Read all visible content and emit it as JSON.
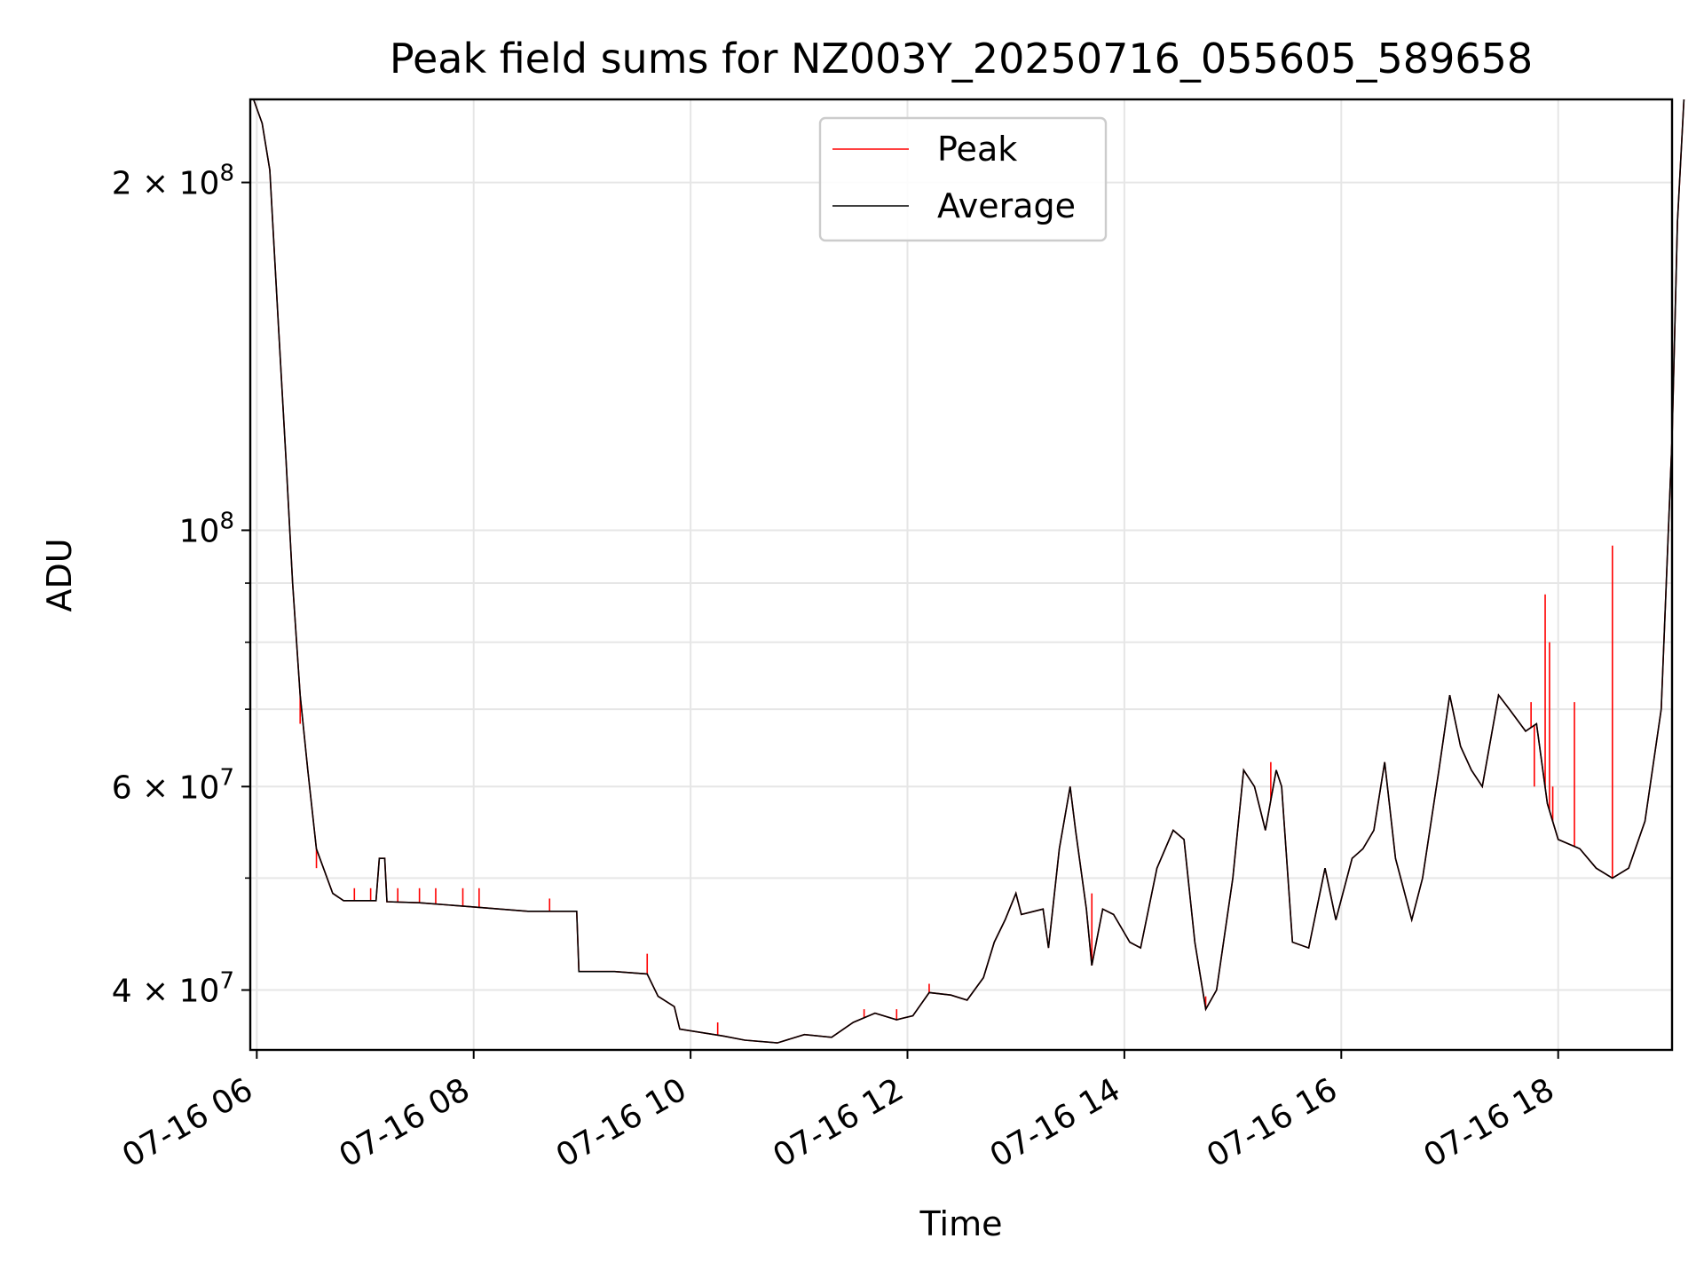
{
  "chart_data": {
    "type": "line",
    "title": "Peak field sums for NZ003Y_20250716_055605_589658",
    "xlabel": "Time",
    "ylabel": "ADU",
    "x_tick_labels": [
      "07-16 06",
      "07-16 08",
      "07-16 10",
      "07-16 12",
      "07-16 14",
      "07-16 16",
      "07-16 18"
    ],
    "x_ticks_hours": [
      6,
      8,
      10,
      12,
      14,
      16,
      18
    ],
    "y_scale": "log",
    "y_ticks": [
      {
        "value": 40000000,
        "mant": "4",
        "exp": "7"
      },
      {
        "value": 60000000,
        "mant": "6",
        "exp": "7"
      },
      {
        "value": 100000000,
        "mant": "",
        "exp": "8"
      },
      {
        "value": 200000000,
        "mant": "2",
        "exp": "8"
      }
    ],
    "y_minor_ticks": [
      50000000,
      70000000,
      80000000,
      90000000
    ],
    "xlim_hours": [
      5.94,
      19.05
    ],
    "ylim": [
      35500000,
      236000000
    ],
    "grid": true,
    "legend": "upper center",
    "colors": {
      "peak": "#ff0000",
      "average": "#000000",
      "grid": "#e6e6e6"
    },
    "series": [
      {
        "name": "Peak",
        "color": "#ff0000",
        "spikes": [
          [
            6.4,
            68000000
          ],
          [
            6.55,
            51000000
          ],
          [
            6.9,
            49000000
          ],
          [
            7.05,
            49000000
          ],
          [
            7.3,
            49000000
          ],
          [
            7.5,
            49000000
          ],
          [
            7.65,
            49000000
          ],
          [
            7.9,
            49000000
          ],
          [
            8.05,
            49000000
          ],
          [
            8.7,
            48000000
          ],
          [
            9.6,
            43000000
          ],
          [
            10.25,
            37500000
          ],
          [
            11.6,
            38500000
          ],
          [
            11.9,
            38500000
          ],
          [
            12.2,
            40500000
          ],
          [
            13.7,
            48500000
          ],
          [
            14.75,
            39500000
          ],
          [
            15.35,
            63000000
          ],
          [
            17.75,
            71000000
          ],
          [
            17.78,
            60000000
          ],
          [
            17.88,
            88000000
          ],
          [
            17.92,
            80000000
          ],
          [
            17.95,
            60000000
          ],
          [
            18.15,
            71000000
          ],
          [
            18.5,
            97000000
          ]
        ]
      },
      {
        "name": "Average",
        "color": "#000000",
        "points": [
          [
            5.97,
            236000000
          ],
          [
            6.05,
            225000000
          ],
          [
            6.12,
            205000000
          ],
          [
            6.2,
            150000000
          ],
          [
            6.27,
            115000000
          ],
          [
            6.33,
            90000000
          ],
          [
            6.4,
            72000000
          ],
          [
            6.47,
            62000000
          ],
          [
            6.55,
            53000000
          ],
          [
            6.7,
            48500000
          ],
          [
            6.8,
            47800000
          ],
          [
            7.1,
            47800000
          ],
          [
            7.13,
            52000000
          ],
          [
            7.18,
            52000000
          ],
          [
            7.2,
            47700000
          ],
          [
            7.5,
            47600000
          ],
          [
            8.0,
            47200000
          ],
          [
            8.5,
            46800000
          ],
          [
            8.95,
            46800000
          ],
          [
            8.97,
            41500000
          ],
          [
            9.3,
            41500000
          ],
          [
            9.6,
            41300000
          ],
          [
            9.7,
            39500000
          ],
          [
            9.85,
            38700000
          ],
          [
            9.9,
            37000000
          ],
          [
            10.3,
            36500000
          ],
          [
            10.5,
            36200000
          ],
          [
            10.8,
            36000000
          ],
          [
            11.05,
            36600000
          ],
          [
            11.3,
            36400000
          ],
          [
            11.5,
            37500000
          ],
          [
            11.7,
            38200000
          ],
          [
            11.9,
            37700000
          ],
          [
            12.05,
            38000000
          ],
          [
            12.2,
            39800000
          ],
          [
            12.4,
            39600000
          ],
          [
            12.55,
            39200000
          ],
          [
            12.7,
            41000000
          ],
          [
            12.8,
            44000000
          ],
          [
            12.9,
            46000000
          ],
          [
            13.0,
            48500000
          ],
          [
            13.05,
            46500000
          ],
          [
            13.25,
            47000000
          ],
          [
            13.3,
            43500000
          ],
          [
            13.4,
            53000000
          ],
          [
            13.5,
            60000000
          ],
          [
            13.55,
            55000000
          ],
          [
            13.65,
            47000000
          ],
          [
            13.7,
            42000000
          ],
          [
            13.8,
            47000000
          ],
          [
            13.9,
            46500000
          ],
          [
            14.05,
            44000000
          ],
          [
            14.15,
            43500000
          ],
          [
            14.3,
            51000000
          ],
          [
            14.45,
            55000000
          ],
          [
            14.55,
            54000000
          ],
          [
            14.65,
            44000000
          ],
          [
            14.75,
            38500000
          ],
          [
            14.85,
            40000000
          ],
          [
            15.0,
            50000000
          ],
          [
            15.1,
            62000000
          ],
          [
            15.2,
            60000000
          ],
          [
            15.3,
            55000000
          ],
          [
            15.4,
            62000000
          ],
          [
            15.45,
            60000000
          ],
          [
            15.55,
            44000000
          ],
          [
            15.7,
            43500000
          ],
          [
            15.85,
            51000000
          ],
          [
            15.95,
            46000000
          ],
          [
            16.1,
            52000000
          ],
          [
            16.2,
            53000000
          ],
          [
            16.3,
            55000000
          ],
          [
            16.4,
            63000000
          ],
          [
            16.5,
            52000000
          ],
          [
            16.65,
            46000000
          ],
          [
            16.75,
            50000000
          ],
          [
            16.9,
            62000000
          ],
          [
            17.0,
            72000000
          ],
          [
            17.1,
            65000000
          ],
          [
            17.2,
            62000000
          ],
          [
            17.3,
            60000000
          ],
          [
            17.45,
            72000000
          ],
          [
            17.55,
            70000000
          ],
          [
            17.7,
            67000000
          ],
          [
            17.8,
            68000000
          ],
          [
            17.9,
            58000000
          ],
          [
            18.0,
            54000000
          ],
          [
            18.2,
            53000000
          ],
          [
            18.35,
            51000000
          ],
          [
            18.5,
            50000000
          ],
          [
            18.65,
            51000000
          ],
          [
            18.8,
            56000000
          ],
          [
            18.95,
            70000000
          ],
          [
            19.05,
            120000000
          ],
          [
            19.1,
            185000000
          ],
          [
            19.16,
            236000000
          ]
        ]
      }
    ]
  }
}
